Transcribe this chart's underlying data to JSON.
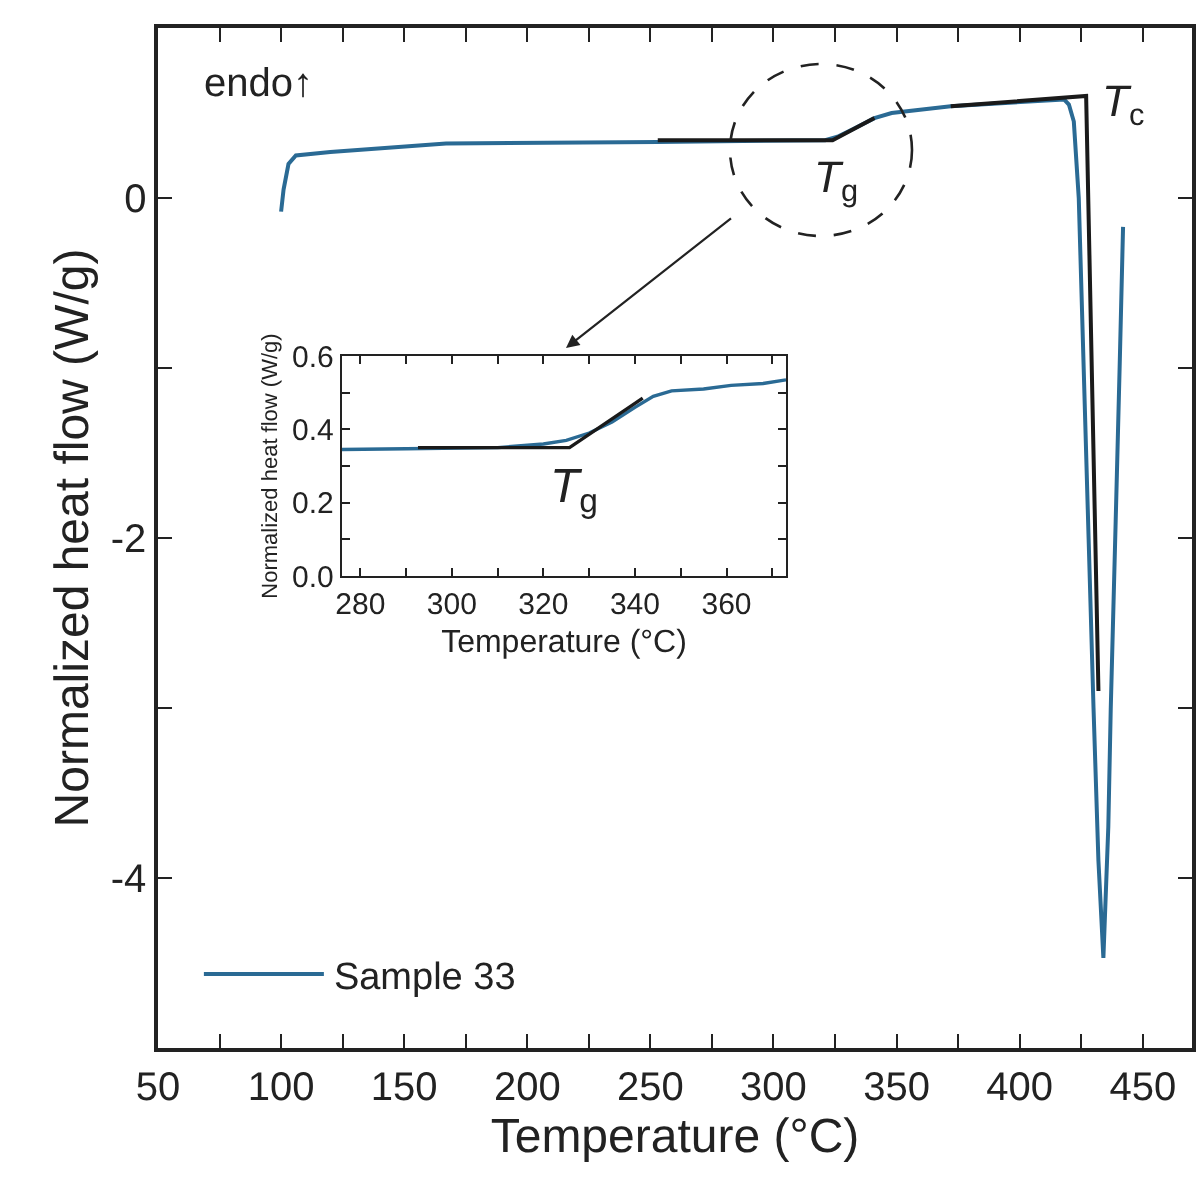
{
  "chart_data": [
    {
      "type": "line",
      "xlabel": "Temperature (°C)",
      "ylabel": "Normalized heat flow (W/g)",
      "xlim": [
        50,
        470
      ],
      "ylim": [
        -5,
        1
      ],
      "xticks": [
        50,
        {
          "value": 75,
          "label": null
        },
        100,
        {
          "value": 125,
          "label": null
        },
        150,
        {
          "value": 175,
          "label": null
        },
        200,
        {
          "value": 225,
          "label": null
        },
        250,
        {
          "value": 275,
          "label": null
        },
        300,
        {
          "value": 325,
          "label": null
        },
        350,
        {
          "value": 375,
          "label": null
        },
        400,
        {
          "value": 425,
          "label": null
        },
        450
      ],
      "yticks": [
        {
          "value": -5,
          "label": null
        },
        -4,
        {
          "value": -3,
          "label": null
        },
        -2,
        {
          "value": -1,
          "label": null
        },
        0,
        {
          "value": 1,
          "label": null
        }
      ],
      "legend": "bottom left",
      "marker": "none",
      "line_style": "solid",
      "series": [
        {
          "name": "Sample 33",
          "color": "#2a6a94",
          "x": [
            100,
            101,
            103,
            106,
            120,
            167,
            253,
            321,
            326,
            333,
            341,
            348,
            372,
            418,
            420,
            422,
            424,
            426,
            428,
            430,
            432,
            434,
            436,
            437,
            439,
            440.6,
            442
          ],
          "values": [
            -0.08,
            0.05,
            0.2,
            0.25,
            0.27,
            0.32,
            0.33,
            0.34,
            0.36,
            0.41,
            0.47,
            0.5,
            0.54,
            0.58,
            0.55,
            0.45,
            0.0,
            -1.0,
            -2.0,
            -3.0,
            -3.9,
            -4.47,
            -3.7,
            -3.0,
            -1.9,
            -1.0,
            -0.17
          ]
        },
        {
          "color": "#1a1a1a",
          "x": [
            253,
            324,
            341,
            350,
            372,
            427,
            432
          ],
          "values": [
            0.34,
            0.34,
            0.47,
            null,
            0.54,
            0.6,
            -2.9
          ]
        }
      ],
      "annotations": [
        "endo↑",
        {
          "text": "T$_{c}$",
          "x": 427,
          "y": 0.6
        },
        {
          "text": "T$_{g}$",
          "x": 324,
          "y": 0.34
        }
      ]
    },
    {
      "type": "line",
      "xlabel": "Temperature (°C)",
      "ylabel": "Normalized heat flow (W/g)",
      "xlim": [
        276,
        373
      ],
      "ylim": [
        0,
        0.6
      ],
      "xticks": [
        280,
        {
          "value": 290,
          "label": null
        },
        300,
        {
          "value": 310,
          "label": null
        },
        320,
        {
          "value": 330,
          "label": null
        },
        340,
        {
          "value": 350,
          "label": null
        },
        360,
        {
          "value": 370,
          "label": null
        }
      ],
      "yticks": [
        {
          "value": 0,
          "label": "0.0"
        },
        {
          "value": 0.1,
          "label": null
        },
        0.2,
        {
          "value": 0.3,
          "label": null
        },
        0.4,
        {
          "value": 0.5,
          "label": null
        },
        0.6
      ],
      "marker": "none",
      "line_style": "solid",
      "series": [
        {
          "color": "#2a6a94",
          "x": [
            276,
            290,
            310,
            320,
            325,
            330,
            335,
            340,
            344,
            348,
            355,
            361,
            368,
            373
          ],
          "values": [
            0.345,
            0.347,
            0.35,
            0.36,
            0.37,
            0.39,
            0.42,
            0.46,
            0.49,
            0.505,
            0.51,
            0.52,
            0.525,
            0.535
          ]
        },
        {
          "color": "#1a1a1a",
          "x": [
            292.6,
            325.7,
            341.7
          ],
          "values": [
            0.35,
            0.35,
            0.485
          ]
        }
      ],
      "annotations": [
        {
          "text": "T$_{g}$",
          "x": 326,
          "y": 0.35
        }
      ]
    }
  ]
}
